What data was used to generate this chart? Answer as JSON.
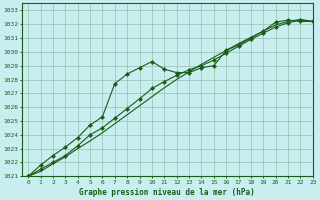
{
  "title": "Graphe pression niveau de la mer (hPa)",
  "background_color": "#c8eef0",
  "grid_color": "#9bbfb0",
  "line_color": "#1a5c1a",
  "text_color": "#1a5c1a",
  "xlim": [
    -0.5,
    23
  ],
  "ylim": [
    1021,
    1033.5
  ],
  "xticks": [
    0,
    1,
    2,
    3,
    4,
    5,
    6,
    7,
    8,
    9,
    10,
    11,
    12,
    13,
    14,
    15,
    16,
    17,
    18,
    19,
    20,
    21,
    22,
    23
  ],
  "yticks": [
    1021,
    1022,
    1023,
    1024,
    1025,
    1026,
    1027,
    1028,
    1029,
    1030,
    1031,
    1032,
    1033
  ],
  "series1_x": [
    0,
    1,
    2,
    3,
    4,
    5,
    6,
    7,
    8,
    9,
    10,
    11,
    12,
    13,
    14,
    15,
    16,
    17,
    18,
    19,
    20,
    21,
    22,
    23
  ],
  "series1_y": [
    1021.0,
    1021.8,
    1022.5,
    1023.1,
    1023.8,
    1024.7,
    1025.3,
    1027.7,
    1028.4,
    1028.85,
    1029.3,
    1028.75,
    1028.5,
    1028.5,
    1028.85,
    1029.0,
    1030.1,
    1030.5,
    1031.0,
    1031.5,
    1032.15,
    1032.3,
    1032.2,
    1032.2
  ],
  "series2_x": [
    0,
    1,
    2,
    3,
    4,
    5,
    6,
    7,
    8,
    9,
    10,
    11,
    12,
    13,
    14,
    15,
    16,
    17,
    18,
    19,
    20,
    21,
    22,
    23
  ],
  "series2_y": [
    1021.0,
    1021.5,
    1022.0,
    1022.5,
    1023.2,
    1024.0,
    1024.5,
    1025.2,
    1025.9,
    1026.6,
    1027.35,
    1027.85,
    1028.3,
    1028.7,
    1029.0,
    1029.4,
    1029.9,
    1030.4,
    1030.9,
    1031.35,
    1031.8,
    1032.1,
    1032.3,
    1032.2
  ],
  "series3_x": [
    0,
    1,
    2,
    3,
    4,
    5,
    6,
    7,
    8,
    9,
    10,
    11,
    12,
    13,
    14,
    15,
    16,
    17,
    18,
    19,
    20,
    21,
    22,
    23
  ],
  "series3_y": [
    1021.0,
    1021.35,
    1021.9,
    1022.4,
    1023.0,
    1023.55,
    1024.15,
    1024.8,
    1025.45,
    1026.1,
    1026.75,
    1027.4,
    1028.0,
    1028.55,
    1029.1,
    1029.6,
    1030.1,
    1030.6,
    1031.05,
    1031.5,
    1031.95,
    1032.2,
    1032.35,
    1032.2
  ]
}
